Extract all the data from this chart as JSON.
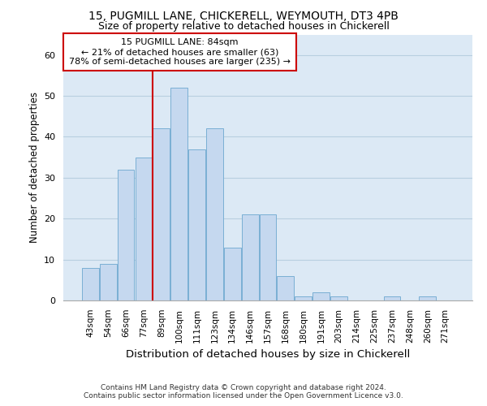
{
  "title1": "15, PUGMILL LANE, CHICKERELL, WEYMOUTH, DT3 4PB",
  "title2": "Size of property relative to detached houses in Chickerell",
  "xlabel": "Distribution of detached houses by size in Chickerell",
  "ylabel": "Number of detached properties",
  "categories": [
    "43sqm",
    "54sqm",
    "66sqm",
    "77sqm",
    "89sqm",
    "100sqm",
    "111sqm",
    "123sqm",
    "134sqm",
    "146sqm",
    "157sqm",
    "168sqm",
    "180sqm",
    "191sqm",
    "203sqm",
    "214sqm",
    "225sqm",
    "237sqm",
    "248sqm",
    "260sqm",
    "271sqm"
  ],
  "values": [
    8,
    9,
    32,
    35,
    42,
    52,
    37,
    42,
    13,
    21,
    21,
    6,
    1,
    2,
    1,
    0,
    0,
    1,
    0,
    1,
    0
  ],
  "bar_color": "#c5d8ef",
  "bar_edge_color": "#7aafd4",
  "vline_color": "#cc0000",
  "annotation_line1": "15 PUGMILL LANE: 84sqm",
  "annotation_line2": "← 21% of detached houses are smaller (63)",
  "annotation_line3": "78% of semi-detached houses are larger (235) →",
  "annotation_box_color": "#cc0000",
  "background_color": "#dce9f5",
  "grid_color": "#b8cfe0",
  "ylim": [
    0,
    65
  ],
  "footer1": "Contains HM Land Registry data © Crown copyright and database right 2024.",
  "footer2": "Contains public sector information licensed under the Open Government Licence v3.0."
}
